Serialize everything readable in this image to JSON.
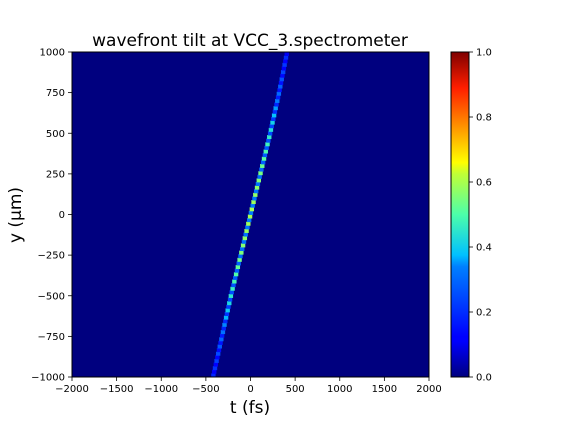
{
  "chart_data": {
    "type": "heatmap",
    "title": "wavefront tilt at VCC_3.spectrometer",
    "xlabel": "t (fs)",
    "ylabel": "y (μm)",
    "xlim": [
      -2000,
      2000
    ],
    "ylim": [
      -1000,
      1000
    ],
    "x_ticks": [
      -2000,
      -1500,
      -1000,
      -500,
      0,
      500,
      1000,
      1500,
      2000
    ],
    "x_tick_labels": [
      "−2000",
      "−1500",
      "−1000",
      "−500",
      "0",
      "500",
      "1000",
      "1500",
      "2000"
    ],
    "y_ticks": [
      -1000,
      -750,
      -500,
      -250,
      0,
      250,
      500,
      750,
      1000
    ],
    "y_tick_labels": [
      "−1000",
      "−750",
      "−500",
      "−250",
      "0",
      "250",
      "500",
      "750",
      "1000"
    ],
    "colormap": "jet",
    "colorbar_range": [
      0,
      1
    ],
    "colorbar_ticks": [
      0.0,
      0.2,
      0.4,
      0.6,
      0.8,
      1.0
    ],
    "colorbar_tick_labels": [
      "0.0",
      "0.2",
      "0.4",
      "0.6",
      "0.8",
      "1.0"
    ],
    "background_color": "#00007f",
    "pulse_ridge": {
      "y": [
        -1000,
        -750,
        -500,
        -250,
        0,
        250,
        500,
        750,
        1000
      ],
      "t": [
        -420,
        -320,
        -220,
        -110,
        0,
        110,
        220,
        320,
        410
      ],
      "peak_intensity": [
        0.18,
        0.3,
        0.45,
        0.55,
        0.6,
        0.55,
        0.45,
        0.3,
        0.18
      ]
    },
    "grid": false
  }
}
